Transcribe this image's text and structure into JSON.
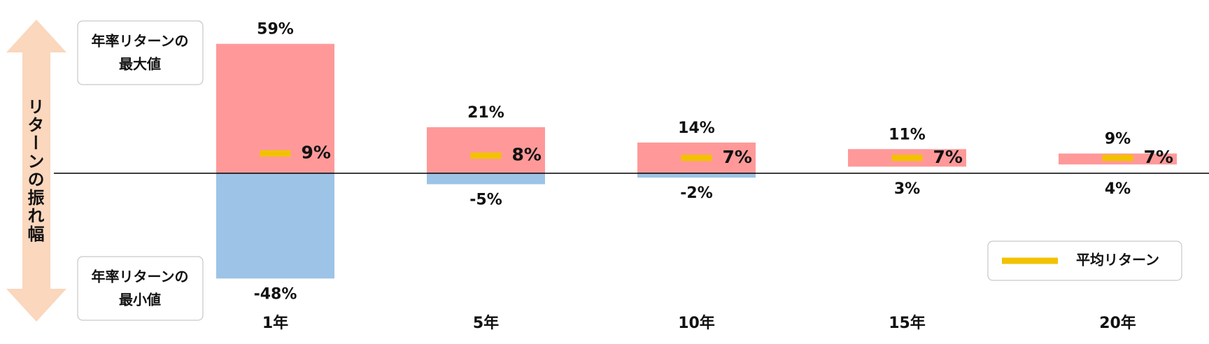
{
  "chart_data": {
    "type": "range_bar",
    "y_label": "リターンの振れ幅",
    "max_note": [
      "年率リターンの",
      "最大値"
    ],
    "min_note": [
      "年率リターンの",
      "最小値"
    ],
    "categories": [
      "1年",
      "5年",
      "10年",
      "15年",
      "20年"
    ],
    "max": {
      "color": "#ff9999",
      "values": [
        59,
        21,
        14,
        11,
        9
      ],
      "value_labels": [
        "59%",
        "21%",
        "14%",
        "11%",
        "9%"
      ]
    },
    "min": {
      "color": "#9dc3e6",
      "values": [
        -48,
        -5,
        -2,
        3,
        4
      ],
      "value_labels": [
        "-48%",
        "-5%",
        "-2%",
        "3%",
        "4%"
      ]
    },
    "series": [
      {
        "name": "平均リターン",
        "color": "#f2c200",
        "values": [
          9,
          8,
          7,
          7,
          7
        ],
        "value_labels": [
          "9%",
          "8%",
          "7%",
          "7%",
          "7%"
        ]
      }
    ],
    "ylim": [
      -60,
      75
    ],
    "legend": "lower right"
  }
}
